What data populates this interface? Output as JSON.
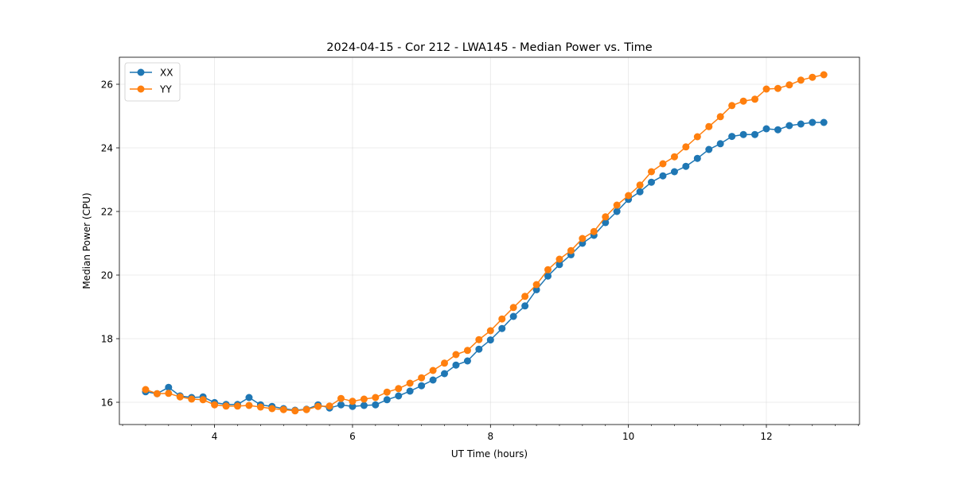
{
  "chart_data": {
    "type": "line",
    "title": "2024-04-15 - Cor 212 - LWA145 - Median Power vs. Time",
    "xlabel": "UT Time (hours)",
    "ylabel": "Median Power (CPU)",
    "xlim": [
      2.62,
      13.35
    ],
    "ylim": [
      15.3,
      26.85
    ],
    "xticks": [
      4,
      6,
      8,
      10,
      12
    ],
    "xticklabels": [
      "4",
      "6",
      "8",
      "10",
      "12"
    ],
    "xminor_step": 0.333333,
    "yticks": [
      16,
      18,
      20,
      22,
      24,
      26
    ],
    "yticklabels": [
      "16",
      "18",
      "20",
      "22",
      "24",
      "26"
    ],
    "grid": true,
    "legend_position": "top-left",
    "x": [
      3.0,
      3.167,
      3.333,
      3.5,
      3.667,
      3.833,
      4.0,
      4.167,
      4.333,
      4.5,
      4.667,
      4.833,
      5.0,
      5.167,
      5.333,
      5.5,
      5.667,
      5.833,
      6.0,
      6.167,
      6.333,
      6.5,
      6.667,
      6.833,
      7.0,
      7.167,
      7.333,
      7.5,
      7.667,
      7.833,
      8.0,
      8.167,
      8.333,
      8.5,
      8.667,
      8.833,
      9.0,
      9.167,
      9.333,
      9.5,
      9.667,
      9.833,
      10.0,
      10.167,
      10.333,
      10.5,
      10.667,
      10.833,
      11.0,
      11.167,
      11.333,
      11.5,
      11.667,
      11.833,
      12.0,
      12.167,
      12.333,
      12.5,
      12.667,
      12.833
    ],
    "series": [
      {
        "name": "XX",
        "color": "#1f77b4",
        "values": [
          16.33,
          16.27,
          16.47,
          16.2,
          16.15,
          16.17,
          15.99,
          15.93,
          15.93,
          16.15,
          15.92,
          15.87,
          15.8,
          15.75,
          15.78,
          15.92,
          15.82,
          15.92,
          15.87,
          15.9,
          15.92,
          16.08,
          16.2,
          16.35,
          16.52,
          16.7,
          16.9,
          17.17,
          17.3,
          17.67,
          17.96,
          18.32,
          18.7,
          19.03,
          19.54,
          19.97,
          20.33,
          20.64,
          21.0,
          21.25,
          21.65,
          22.0,
          22.38,
          22.62,
          22.92,
          23.12,
          23.25,
          23.42,
          23.67,
          23.95,
          24.13,
          24.36,
          24.42,
          24.42,
          24.6,
          24.57,
          24.7,
          24.75,
          24.8,
          24.8
        ]
      },
      {
        "name": "YY",
        "color": "#ff7f0e",
        "values": [
          16.4,
          16.27,
          16.28,
          16.17,
          16.1,
          16.08,
          15.92,
          15.88,
          15.88,
          15.9,
          15.85,
          15.8,
          15.77,
          15.73,
          15.77,
          15.87,
          15.88,
          16.12,
          16.03,
          16.1,
          16.15,
          16.32,
          16.43,
          16.6,
          16.77,
          17.0,
          17.23,
          17.5,
          17.63,
          17.97,
          18.25,
          18.62,
          18.98,
          19.33,
          19.7,
          20.17,
          20.5,
          20.77,
          21.15,
          21.37,
          21.83,
          22.2,
          22.5,
          22.83,
          23.25,
          23.5,
          23.72,
          24.03,
          24.35,
          24.67,
          24.98,
          25.33,
          25.47,
          25.53,
          25.85,
          25.87,
          25.98,
          26.13,
          26.22,
          26.3
        ]
      }
    ]
  }
}
